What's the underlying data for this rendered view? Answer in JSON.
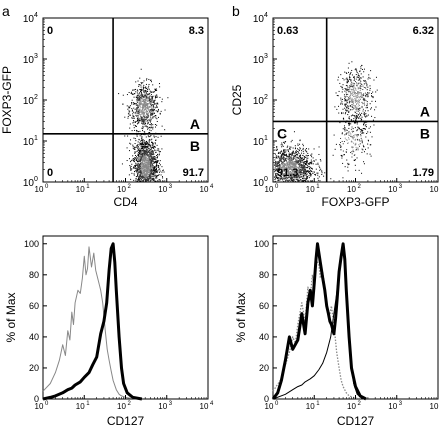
{
  "panel_letters": {
    "a": "a",
    "b": "b"
  },
  "chart_data": [
    {
      "type": "scatter",
      "panel": "a",
      "xlabel": "CD4",
      "ylabel": "FOXP3-GFP",
      "x_scale": "log",
      "y_scale": "log",
      "xlim": [
        1,
        10000
      ],
      "ylim": [
        1,
        10000
      ],
      "x_ticks": [
        "10",
        "10",
        "10",
        "10",
        "10"
      ],
      "x_tick_exponents": [
        "0",
        "1",
        "2",
        "3",
        "4"
      ],
      "y_ticks": [
        "10",
        "10",
        "10",
        "10",
        "10"
      ],
      "y_tick_exponents": [
        "0",
        "1",
        "2",
        "3",
        "4"
      ],
      "gates": {
        "x": 50,
        "y": 15
      },
      "quadrant_percentages": {
        "top_left": "0",
        "top_right": "8.3",
        "bottom_left": "0",
        "bottom_right": "91.7"
      },
      "region_labels": [
        "A",
        "B"
      ],
      "populations": [
        {
          "name": "",
          "x_center": 280,
          "y_center": 70,
          "x_spread": 0.18,
          "y_spread": 0.28,
          "count": 700
        },
        {
          "name": "",
          "x_center": 300,
          "y_center": 2.5,
          "x_spread": 0.15,
          "y_spread": 0.35,
          "count": 1400
        }
      ]
    },
    {
      "type": "scatter",
      "panel": "b",
      "xlabel": "FOXP3-GFP",
      "ylabel": "CD25",
      "x_scale": "log",
      "y_scale": "log",
      "xlim": [
        1,
        10000
      ],
      "ylim": [
        1,
        10000
      ],
      "x_ticks": [
        "10",
        "10",
        "10",
        "10",
        "10"
      ],
      "x_tick_exponents": [
        "0",
        "1",
        "2",
        "3",
        "4"
      ],
      "y_ticks": [
        "10",
        "10",
        "10",
        "10",
        "10"
      ],
      "y_tick_exponents": [
        "0",
        "1",
        "2",
        "3",
        "4"
      ],
      "gates": {
        "x": 20,
        "y": 30
      },
      "quadrant_percentages": {
        "top_left": "0.63",
        "top_right": "6.32",
        "bottom_left": "91.3",
        "bottom_right": "1.79"
      },
      "region_labels": [
        "A",
        "B",
        "C"
      ],
      "populations": [
        {
          "name": "",
          "x_center": 2.5,
          "y_center": 2.2,
          "x_spread": 0.3,
          "y_spread": 0.25,
          "count": 1400
        },
        {
          "name": "",
          "x_center": 100,
          "y_center": 120,
          "x_spread": 0.2,
          "y_spread": 0.35,
          "count": 500
        },
        {
          "name": "",
          "x_center": 80,
          "y_center": 10,
          "x_spread": 0.22,
          "y_spread": 0.3,
          "count": 200
        }
      ]
    },
    {
      "type": "line",
      "panel": "a-bottom",
      "xlabel": "CD127",
      "ylabel": "% of Max",
      "x_scale": "log",
      "xlim": [
        1,
        10000
      ],
      "ylim": [
        0,
        105
      ],
      "x_ticks": [
        "10",
        "10",
        "10",
        "10",
        "10"
      ],
      "x_tick_exponents": [
        "0",
        "1",
        "2",
        "3",
        "4"
      ],
      "y_ticks": [
        "0",
        "20",
        "40",
        "60",
        "80",
        "100"
      ],
      "series": [
        {
          "style": "thin-gray",
          "x": [
            1.0,
            1.5,
            2.0,
            2.5,
            3.0,
            3.5,
            4.0,
            4.5,
            5.0,
            5.5,
            6.0,
            7.0,
            8.0,
            9.0,
            10,
            11,
            12,
            13,
            15,
            17,
            19,
            22,
            25,
            28,
            32,
            36,
            40,
            45,
            50,
            60,
            70,
            80,
            100,
            130,
            200
          ],
          "y": [
            5,
            10,
            17,
            25,
            35,
            28,
            44,
            38,
            56,
            48,
            62,
            70,
            68,
            78,
            92,
            80,
            84,
            98,
            85,
            94,
            83,
            76,
            70,
            62,
            45,
            32,
            25,
            18,
            12,
            6,
            3,
            2,
            1,
            0.5,
            0
          ]
        },
        {
          "style": "thick-black",
          "x": [
            1.0,
            1.5,
            2,
            3,
            4,
            5,
            6,
            8,
            10,
            13,
            16,
            20,
            25,
            30,
            35,
            40,
            45,
            50,
            55,
            60,
            70,
            80,
            90,
            110,
            150,
            250
          ],
          "y": [
            0,
            1,
            2,
            4,
            6,
            7,
            9,
            11,
            14,
            17,
            22,
            27,
            42,
            50,
            62,
            83,
            97,
            100,
            88,
            70,
            40,
            20,
            10,
            4,
            1,
            0
          ]
        }
      ]
    },
    {
      "type": "line",
      "panel": "b-bottom",
      "xlabel": "CD127",
      "ylabel": "% of Max",
      "x_scale": "log",
      "xlim": [
        1,
        10000
      ],
      "ylim": [
        0,
        105
      ],
      "x_ticks": [
        "10",
        "10",
        "10",
        "10",
        "10"
      ],
      "x_tick_exponents": [
        "0",
        "1",
        "2",
        "3",
        "4"
      ],
      "y_ticks": [
        "0",
        "20",
        "40",
        "60",
        "80",
        "100"
      ],
      "series": [
        {
          "style": "dotted-gray",
          "x": [
            1.0,
            1.5,
            2,
            2.5,
            3,
            3.5,
            4,
            5,
            6,
            7,
            8,
            9,
            10,
            11,
            12,
            13,
            14,
            16,
            18,
            20,
            23,
            26,
            30,
            35,
            40,
            45,
            50,
            60,
            70,
            90,
            120
          ],
          "y": [
            5,
            12,
            22,
            30,
            40,
            36,
            48,
            62,
            50,
            72,
            66,
            80,
            68,
            92,
            88,
            86,
            78,
            82,
            72,
            60,
            52,
            60,
            48,
            30,
            20,
            12,
            8,
            4,
            2,
            1,
            0
          ]
        },
        {
          "style": "thick-black",
          "x": [
            1.0,
            1.3,
            1.6,
            2,
            2.5,
            3,
            4,
            5,
            6,
            7,
            8,
            9,
            10,
            11,
            12,
            14,
            16,
            18,
            20,
            22,
            24,
            26,
            28,
            30,
            33,
            36,
            40,
            45,
            50,
            55,
            60,
            70,
            80,
            100,
            130,
            180
          ],
          "y": [
            0,
            4,
            12,
            25,
            40,
            32,
            38,
            55,
            42,
            62,
            70,
            60,
            75,
            90,
            100,
            88,
            78,
            70,
            60,
            55,
            50,
            48,
            45,
            42,
            52,
            65,
            82,
            92,
            100,
            90,
            70,
            40,
            20,
            8,
            2,
            0
          ]
        },
        {
          "style": "thin-black",
          "x": [
            1.0,
            2,
            3,
            4,
            5,
            6,
            8,
            10,
            13,
            16,
            20,
            25,
            30,
            35,
            40,
            45,
            50,
            55,
            60,
            70,
            80,
            90,
            110,
            150
          ],
          "y": [
            0,
            3,
            6,
            8,
            9,
            11,
            13,
            15,
            19,
            23,
            30,
            40,
            55,
            68,
            85,
            95,
            100,
            90,
            75,
            45,
            22,
            10,
            3,
            0
          ]
        }
      ]
    }
  ]
}
